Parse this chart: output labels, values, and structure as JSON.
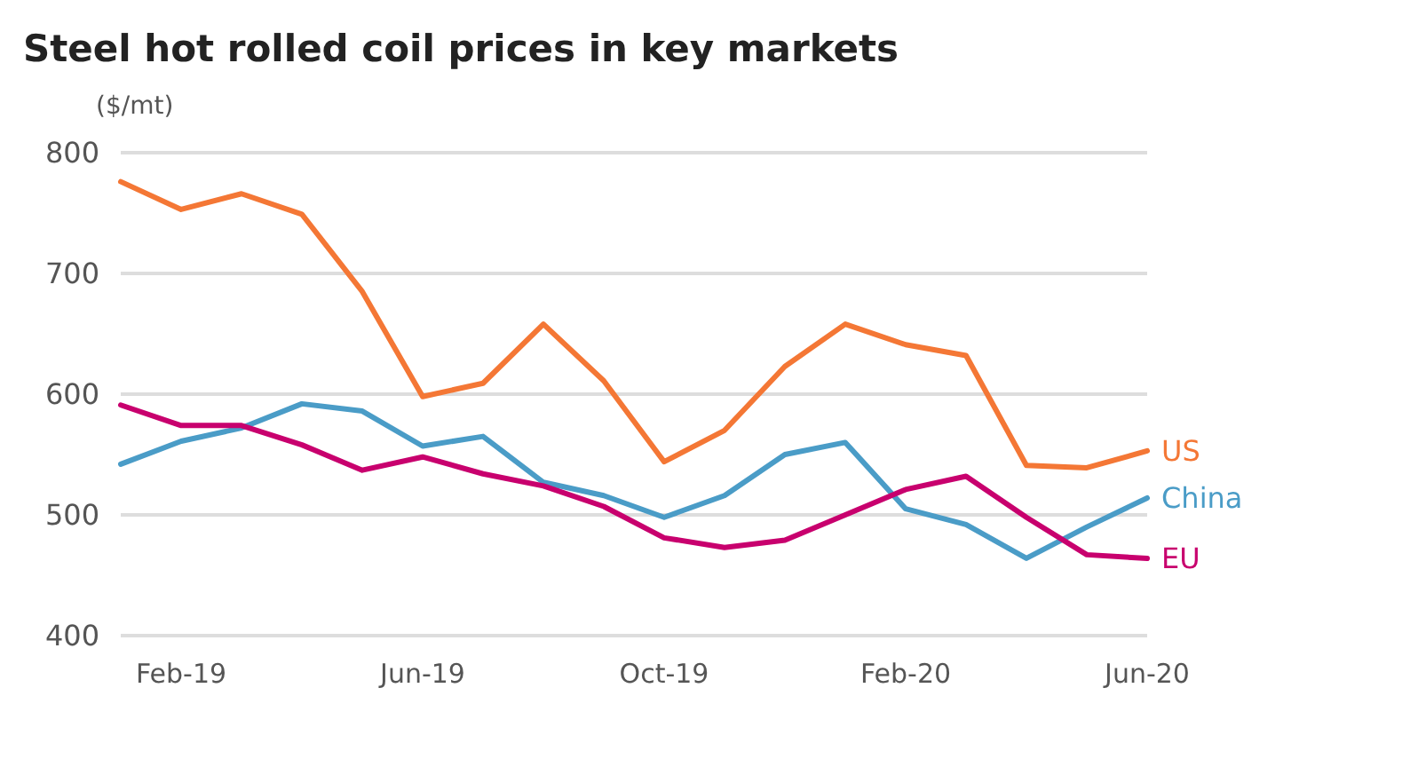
{
  "chart_data": {
    "type": "line",
    "title": "Steel hot rolled coil prices in key markets",
    "ylabel": "($/mt)",
    "categories": [
      null,
      "Feb-19",
      null,
      null,
      null,
      "Jun-19",
      null,
      null,
      null,
      "Oct-19",
      null,
      null,
      null,
      "Feb-20",
      null,
      null,
      null,
      "Jun-20"
    ],
    "series": [
      {
        "name": "US",
        "color": "#f47735",
        "values": [
          776,
          753,
          766,
          749,
          685,
          598,
          609,
          658,
          611,
          544,
          570,
          623,
          658,
          641,
          632,
          541,
          539,
          553
        ]
      },
      {
        "name": "China",
        "color": "#4a9cc7",
        "values": [
          542,
          561,
          572,
          592,
          586,
          557,
          565,
          527,
          516,
          498,
          516,
          550,
          560,
          505,
          492,
          464,
          490,
          514
        ]
      },
      {
        "name": "EU",
        "color": "#c8006e",
        "values": [
          591,
          574,
          574,
          558,
          537,
          548,
          534,
          524,
          507,
          481,
          473,
          479,
          500,
          521,
          532,
          498,
          467,
          464
        ]
      }
    ],
    "ylim": [
      400,
      800
    ],
    "yticks": [
      400,
      500,
      600,
      700,
      800
    ],
    "grid": "y",
    "legend": false,
    "marker": "none",
    "line_style": "solid"
  }
}
